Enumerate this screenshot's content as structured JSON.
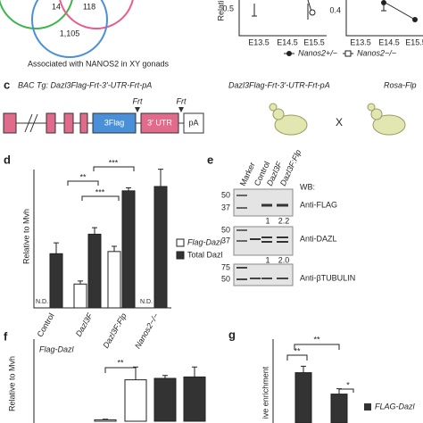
{
  "venn": {
    "counts": [
      "14",
      "118",
      "1,105"
    ],
    "caption": "Associated with NANOS2 in XY gonads"
  },
  "top_charts": {
    "y_label": "Relati",
    "tick_left": "0.5",
    "tick_right": "0.4",
    "x_labels": [
      "E13.5",
      "E14.5",
      "E15.5",
      "E13.5",
      "E14.5",
      "E15.5"
    ],
    "legend": [
      "Nanos2+/−",
      "Nanos2−/−"
    ]
  },
  "panel_c": {
    "label": "c",
    "bac": "BAC Tg: Dazl3Flag-Frt-3′-UTR-Frt-pA",
    "flag": "3Flag",
    "utr": "3′ UTR",
    "pa": "pA",
    "frt": [
      "Frt",
      "Frt"
    ],
    "construct": "Dazl3Flag-Frt-3′-UTR-Frt-pA",
    "cross": "X",
    "rosa": "Rosa-Flp"
  },
  "panel_d": {
    "label": "d",
    "y_label": "Relative to Mvh",
    "categories": [
      "Control",
      "Dazl3F",
      "Dazl3F:Flp",
      "Nanos2−/−"
    ],
    "ylim": [
      0,
      3.5
    ],
    "series": [
      {
        "name": "Flag-Dazl",
        "color": "#ffffff",
        "values": [
          null,
          0.55,
          1.3,
          null
        ],
        "errors": [
          null,
          0.07,
          0.12,
          null
        ]
      },
      {
        "name": "Total Dazl",
        "color": "#333333",
        "values": [
          1.25,
          1.7,
          2.7,
          2.8
        ],
        "errors": [
          0.25,
          0.15,
          0.07,
          0.4
        ]
      }
    ],
    "nd": [
      "N.D.",
      "N.D."
    ],
    "sig": [
      "**",
      "***",
      "***"
    ]
  },
  "panel_e": {
    "label": "e",
    "lanes": [
      "Marker",
      "Control",
      "Dazl3F",
      "Dazl3F:Flp"
    ],
    "wb": "WB:",
    "blot1": {
      "mw": [
        "50",
        "37"
      ],
      "antibody": "Anti-FLAG",
      "ratios": [
        "1",
        "2.2"
      ]
    },
    "blot2": {
      "mw": [
        "50",
        "37"
      ],
      "antibody": "Anti-DAZL",
      "ratios": [
        "1",
        "2.0"
      ]
    },
    "blot3": {
      "mw": [
        "75",
        "50"
      ],
      "antibody": "Anti-βTUBULIN"
    }
  },
  "panel_f": {
    "label": "f",
    "title": "Flag-Dazl",
    "y_label": "Relative to Mvh",
    "ylim": [
      0,
      2
    ],
    "values": [
      0.05,
      1.45,
      1.5,
      1.55
    ],
    "errors": [
      0.02,
      0.45,
      0.1,
      0.35
    ],
    "colors": [
      "#ffffff",
      "#ffffff",
      "#333333",
      "#333333"
    ],
    "sig": "**"
  },
  "panel_g": {
    "label": "g",
    "y_label": "ive enrichment",
    "ylim": [
      0,
      6
    ],
    "values": [
      4.7,
      2.7
    ],
    "errors": [
      0.6,
      0.5
    ],
    "color": "#333333",
    "sig": [
      "**",
      "**",
      "*"
    ],
    "legend": "FLAG-Dazl"
  }
}
